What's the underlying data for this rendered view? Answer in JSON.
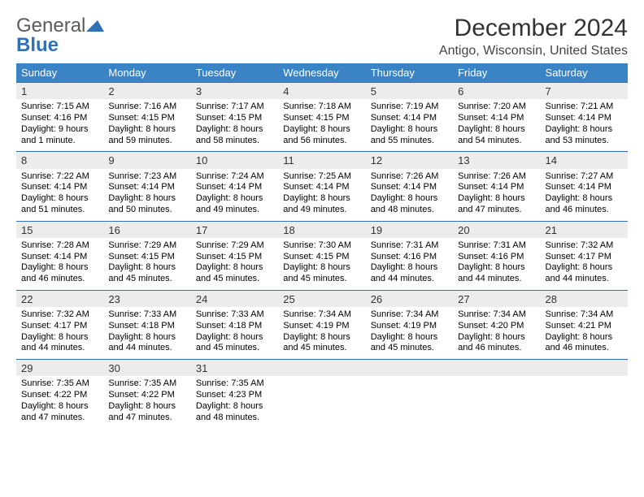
{
  "brand": {
    "word1": "General",
    "word2": "Blue",
    "color_gray": "#5a5a5a",
    "color_blue": "#2f71b8"
  },
  "title": {
    "month_year": "December 2024",
    "location": "Antigo, Wisconsin, United States"
  },
  "colors": {
    "header_bg": "#3a84c5",
    "daynum_bg": "#ececec",
    "border": "#2f71b8",
    "text": "#000000"
  },
  "weekdays": [
    "Sunday",
    "Monday",
    "Tuesday",
    "Wednesday",
    "Thursday",
    "Friday",
    "Saturday"
  ],
  "weeks": [
    [
      {
        "n": "1",
        "sr": "7:15 AM",
        "ss": "4:16 PM",
        "dl": "9 hours and 1 minute."
      },
      {
        "n": "2",
        "sr": "7:16 AM",
        "ss": "4:15 PM",
        "dl": "8 hours and 59 minutes."
      },
      {
        "n": "3",
        "sr": "7:17 AM",
        "ss": "4:15 PM",
        "dl": "8 hours and 58 minutes."
      },
      {
        "n": "4",
        "sr": "7:18 AM",
        "ss": "4:15 PM",
        "dl": "8 hours and 56 minutes."
      },
      {
        "n": "5",
        "sr": "7:19 AM",
        "ss": "4:14 PM",
        "dl": "8 hours and 55 minutes."
      },
      {
        "n": "6",
        "sr": "7:20 AM",
        "ss": "4:14 PM",
        "dl": "8 hours and 54 minutes."
      },
      {
        "n": "7",
        "sr": "7:21 AM",
        "ss": "4:14 PM",
        "dl": "8 hours and 53 minutes."
      }
    ],
    [
      {
        "n": "8",
        "sr": "7:22 AM",
        "ss": "4:14 PM",
        "dl": "8 hours and 51 minutes."
      },
      {
        "n": "9",
        "sr": "7:23 AM",
        "ss": "4:14 PM",
        "dl": "8 hours and 50 minutes."
      },
      {
        "n": "10",
        "sr": "7:24 AM",
        "ss": "4:14 PM",
        "dl": "8 hours and 49 minutes."
      },
      {
        "n": "11",
        "sr": "7:25 AM",
        "ss": "4:14 PM",
        "dl": "8 hours and 49 minutes."
      },
      {
        "n": "12",
        "sr": "7:26 AM",
        "ss": "4:14 PM",
        "dl": "8 hours and 48 minutes."
      },
      {
        "n": "13",
        "sr": "7:26 AM",
        "ss": "4:14 PM",
        "dl": "8 hours and 47 minutes."
      },
      {
        "n": "14",
        "sr": "7:27 AM",
        "ss": "4:14 PM",
        "dl": "8 hours and 46 minutes."
      }
    ],
    [
      {
        "n": "15",
        "sr": "7:28 AM",
        "ss": "4:14 PM",
        "dl": "8 hours and 46 minutes."
      },
      {
        "n": "16",
        "sr": "7:29 AM",
        "ss": "4:15 PM",
        "dl": "8 hours and 45 minutes."
      },
      {
        "n": "17",
        "sr": "7:29 AM",
        "ss": "4:15 PM",
        "dl": "8 hours and 45 minutes."
      },
      {
        "n": "18",
        "sr": "7:30 AM",
        "ss": "4:15 PM",
        "dl": "8 hours and 45 minutes."
      },
      {
        "n": "19",
        "sr": "7:31 AM",
        "ss": "4:16 PM",
        "dl": "8 hours and 44 minutes."
      },
      {
        "n": "20",
        "sr": "7:31 AM",
        "ss": "4:16 PM",
        "dl": "8 hours and 44 minutes."
      },
      {
        "n": "21",
        "sr": "7:32 AM",
        "ss": "4:17 PM",
        "dl": "8 hours and 44 minutes."
      }
    ],
    [
      {
        "n": "22",
        "sr": "7:32 AM",
        "ss": "4:17 PM",
        "dl": "8 hours and 44 minutes."
      },
      {
        "n": "23",
        "sr": "7:33 AM",
        "ss": "4:18 PM",
        "dl": "8 hours and 44 minutes."
      },
      {
        "n": "24",
        "sr": "7:33 AM",
        "ss": "4:18 PM",
        "dl": "8 hours and 45 minutes."
      },
      {
        "n": "25",
        "sr": "7:34 AM",
        "ss": "4:19 PM",
        "dl": "8 hours and 45 minutes."
      },
      {
        "n": "26",
        "sr": "7:34 AM",
        "ss": "4:19 PM",
        "dl": "8 hours and 45 minutes."
      },
      {
        "n": "27",
        "sr": "7:34 AM",
        "ss": "4:20 PM",
        "dl": "8 hours and 46 minutes."
      },
      {
        "n": "28",
        "sr": "7:34 AM",
        "ss": "4:21 PM",
        "dl": "8 hours and 46 minutes."
      }
    ],
    [
      {
        "n": "29",
        "sr": "7:35 AM",
        "ss": "4:22 PM",
        "dl": "8 hours and 47 minutes."
      },
      {
        "n": "30",
        "sr": "7:35 AM",
        "ss": "4:22 PM",
        "dl": "8 hours and 47 minutes."
      },
      {
        "n": "31",
        "sr": "7:35 AM",
        "ss": "4:23 PM",
        "dl": "8 hours and 48 minutes."
      },
      null,
      null,
      null,
      null
    ]
  ],
  "labels": {
    "sunrise": "Sunrise: ",
    "sunset": "Sunset: ",
    "daylight": "Daylight: "
  }
}
